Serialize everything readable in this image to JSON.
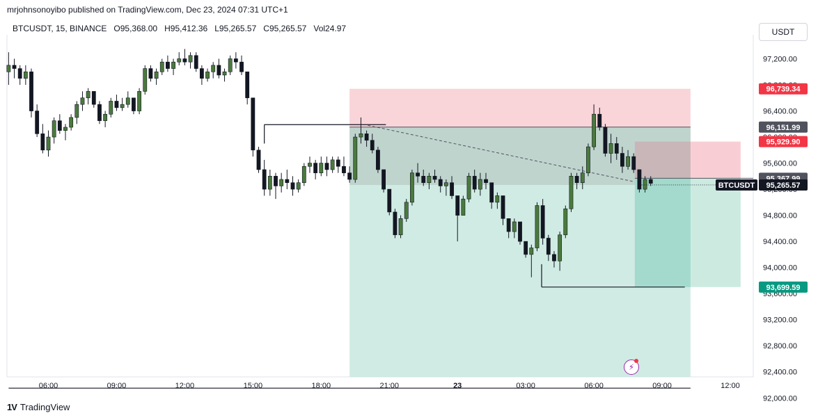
{
  "header": {
    "publish_text": "mrjohnsonoyibo published on TradingView.com, Dec 23, 2024 07:31 UTC+1",
    "symbol_line": "BTCUSDT, 15, BINANCE",
    "open": "O95,368.00",
    "high": "H95,412.36",
    "low": "L95,265.57",
    "close": "C95,265.57",
    "volume": "Vol24.97",
    "currency_button": "USDT"
  },
  "footer": {
    "brand": "TradingView"
  },
  "colors": {
    "up": "#4a7a3d",
    "down": "#131722",
    "stop_zone": "#f7c6cc",
    "target_zone": "#c4e6dc",
    "stop_tag": "#f23645",
    "target_tag": "#089981",
    "price_tag": "#131722",
    "level_tag": "#50535e"
  },
  "chart_data": {
    "type": "candlestick",
    "symbol": "BTCUSDT",
    "interval": "15",
    "ylim": [
      91950,
      97500
    ],
    "y_ticks": [
      "97,200.00",
      "96,800.00",
      "96,400.00",
      "96,000.00",
      "95,600.00",
      "95,200.00",
      "94,800.00",
      "94,400.00",
      "94,000.00",
      "93,600.00",
      "93,200.00",
      "92,800.00",
      "92,400.00",
      "92,000.00"
    ],
    "y_tick_values": [
      97200,
      96800,
      96400,
      96000,
      95600,
      95200,
      94800,
      94400,
      94000,
      93600,
      93200,
      92800,
      92400,
      92000
    ],
    "x_ticks": [
      "06:00",
      "09:00",
      "12:00",
      "15:00",
      "18:00",
      "21:00",
      "23",
      "03:00",
      "06:00",
      "09:00",
      "12:00"
    ],
    "x_tick_times": [
      6,
      9,
      12,
      15,
      18,
      21,
      24,
      27,
      30,
      33,
      36
    ],
    "time_start": 4.25,
    "time_step": 0.25,
    "candles": [
      [
        97000,
        97300,
        96800,
        97100
      ],
      [
        97100,
        97200,
        96900,
        97050
      ],
      [
        97050,
        97100,
        96800,
        96900
      ],
      [
        96900,
        97100,
        96800,
        97000
      ],
      [
        97000,
        97050,
        96300,
        96400
      ],
      [
        96400,
        96500,
        96000,
        96050
      ],
      [
        96050,
        96200,
        95750,
        95800
      ],
      [
        95800,
        96100,
        95700,
        96000
      ],
      [
        96000,
        96300,
        95900,
        96250
      ],
      [
        96250,
        96350,
        96050,
        96100
      ],
      [
        96100,
        96200,
        95950,
        96150
      ],
      [
        96150,
        96350,
        96100,
        96300
      ],
      [
        96300,
        96550,
        96200,
        96500
      ],
      [
        96500,
        96700,
        96400,
        96600
      ],
      [
        96600,
        96750,
        96500,
        96700
      ],
      [
        96700,
        96700,
        96450,
        96500
      ],
      [
        96500,
        96550,
        96200,
        96250
      ],
      [
        96250,
        96400,
        96150,
        96350
      ],
      [
        96350,
        96600,
        96300,
        96550
      ],
      [
        96550,
        96650,
        96400,
        96450
      ],
      [
        96450,
        96600,
        96400,
        96500
      ],
      [
        96500,
        96700,
        96450,
        96600
      ],
      [
        96600,
        96600,
        96350,
        96400
      ],
      [
        96400,
        96750,
        96350,
        96700
      ],
      [
        96700,
        97100,
        96650,
        97050
      ],
      [
        97050,
        97100,
        96850,
        96900
      ],
      [
        96900,
        97050,
        96800,
        97000
      ],
      [
        97000,
        97200,
        96950,
        97150
      ],
      [
        97150,
        97250,
        97000,
        97050
      ],
      [
        97050,
        97200,
        96950,
        97150
      ],
      [
        97150,
        97300,
        97100,
        97200
      ],
      [
        97200,
        97350,
        97100,
        97150
      ],
      [
        97150,
        97300,
        97050,
        97250
      ],
      [
        97250,
        97300,
        97000,
        97050
      ],
      [
        97050,
        97100,
        96800,
        96900
      ],
      [
        96900,
        97050,
        96850,
        97000
      ],
      [
        97000,
        97150,
        96900,
        97100
      ],
      [
        97100,
        97200,
        96900,
        96950
      ],
      [
        96950,
        97050,
        96850,
        97000
      ],
      [
        97000,
        97250,
        96950,
        97200
      ],
      [
        97200,
        97300,
        97050,
        97150
      ],
      [
        97150,
        97250,
        96950,
        97000
      ],
      [
        97000,
        97000,
        96500,
        96600
      ],
      [
        96600,
        96600,
        95700,
        95800
      ],
      [
        95800,
        95850,
        95450,
        95500
      ],
      [
        95500,
        95650,
        95100,
        95200
      ],
      [
        95200,
        95500,
        95100,
        95400
      ],
      [
        95400,
        95450,
        95050,
        95250
      ],
      [
        95250,
        95450,
        95150,
        95350
      ],
      [
        95350,
        95500,
        95200,
        95300
      ],
      [
        95300,
        95400,
        95100,
        95200
      ],
      [
        95200,
        95350,
        95150,
        95300
      ],
      [
        95300,
        95600,
        95250,
        95550
      ],
      [
        95550,
        95700,
        95450,
        95600
      ],
      [
        95600,
        95650,
        95350,
        95450
      ],
      [
        95450,
        95700,
        95400,
        95600
      ],
      [
        95600,
        95700,
        95400,
        95500
      ],
      [
        95500,
        95700,
        95450,
        95650
      ],
      [
        95650,
        95700,
        95450,
        95550
      ],
      [
        95550,
        95700,
        95400,
        95450
      ],
      [
        95450,
        95550,
        95300,
        95350
      ],
      [
        95350,
        96050,
        95300,
        96000
      ],
      [
        96000,
        96300,
        95900,
        96050
      ],
      [
        96050,
        96100,
        95850,
        95950
      ],
      [
        95950,
        96050,
        95750,
        95800
      ],
      [
        95800,
        95850,
        95450,
        95500
      ],
      [
        95500,
        95500,
        95150,
        95200
      ],
      [
        95200,
        95200,
        94800,
        94850
      ],
      [
        94850,
        94900,
        94450,
        94500
      ],
      [
        94500,
        94800,
        94450,
        94750
      ],
      [
        94750,
        95050,
        94700,
        95000
      ],
      [
        95000,
        95500,
        94950,
        95450
      ],
      [
        95450,
        95600,
        95300,
        95400
      ],
      [
        95400,
        95500,
        95250,
        95300
      ],
      [
        95300,
        95450,
        95200,
        95400
      ],
      [
        95400,
        95500,
        95300,
        95350
      ],
      [
        95350,
        95400,
        95150,
        95250
      ],
      [
        95250,
        95350,
        95100,
        95300
      ],
      [
        95300,
        95400,
        95050,
        95100
      ],
      [
        95100,
        95100,
        94400,
        94800
      ],
      [
        94800,
        95100,
        94800,
        95050
      ],
      [
        95050,
        95450,
        95000,
        95400
      ],
      [
        95400,
        95500,
        95150,
        95200
      ],
      [
        95200,
        95450,
        95100,
        95350
      ],
      [
        95350,
        95450,
        95200,
        95300
      ],
      [
        95300,
        95300,
        94900,
        95000
      ],
      [
        95000,
        95150,
        94900,
        95100
      ],
      [
        95100,
        95100,
        94650,
        94750
      ],
      [
        94750,
        94750,
        94450,
        94550
      ],
      [
        94550,
        94750,
        94450,
        94700
      ],
      [
        94700,
        94700,
        94350,
        94400
      ],
      [
        94400,
        94400,
        94150,
        94200
      ],
      [
        94200,
        94350,
        93850,
        94300
      ],
      [
        94300,
        95000,
        94250,
        94950
      ],
      [
        94950,
        95050,
        94350,
        94450
      ],
      [
        94450,
        94500,
        94100,
        94200
      ],
      [
        94200,
        94250,
        94000,
        94100
      ],
      [
        94100,
        94550,
        93950,
        94500
      ],
      [
        94500,
        94950,
        94450,
        94900
      ],
      [
        94900,
        95450,
        94850,
        95400
      ],
      [
        95400,
        95450,
        95200,
        95300
      ],
      [
        95300,
        95550,
        95200,
        95450
      ],
      [
        95450,
        95900,
        95400,
        95850
      ],
      [
        95850,
        96500,
        95800,
        96350
      ],
      [
        96350,
        96450,
        96100,
        96150
      ],
      [
        96150,
        96200,
        95700,
        95750
      ],
      [
        95750,
        96050,
        95600,
        95900
      ],
      [
        95900,
        96000,
        95650,
        95750
      ],
      [
        95750,
        95850,
        95450,
        95550
      ],
      [
        95550,
        95800,
        95500,
        95700
      ],
      [
        95700,
        95750,
        95450,
        95500
      ],
      [
        95500,
        95500,
        95150,
        95200
      ],
      [
        95200,
        95400,
        95150,
        95350
      ],
      [
        95350,
        95400,
        95250,
        95290
      ]
    ],
    "annotations": {
      "position_zone": {
        "entry_time": 19.25,
        "end_time": 34.25,
        "entry": 95265,
        "stop": 96739.34,
        "target": 91950
      },
      "position_zone_2": {
        "entry_time": 31.8,
        "end_time": 34.25,
        "entry": 95367.99,
        "stop": 95929.9,
        "target": 93699.59
      },
      "level_lines": [
        {
          "price": 96151.99,
          "from_time": 19.25,
          "to_time": 34.25
        },
        {
          "price": 95367.99,
          "from_time": 31.8,
          "to_time": 37.5
        }
      ],
      "horizontal_segments": [
        {
          "price": 96190,
          "from_time": 15.5,
          "to_time": 20.85
        },
        {
          "price": 93700,
          "from_time": 27.7,
          "to_time": 34.0
        },
        {
          "price": 92150,
          "from_time": 4.25,
          "to_time": 34.25
        }
      ],
      "vertical_segments": [
        {
          "time": 15.5,
          "from_price": 95900,
          "to_price": 96190
        },
        {
          "time": 27.7,
          "from_price": 93700,
          "to_price": 94050
        }
      ],
      "dashed_trendline": {
        "from": [
          20.05,
          96180
        ],
        "to": [
          31.7,
          95320
        ]
      }
    },
    "price_tags": [
      {
        "label": "96,739.34",
        "value": 96739.34,
        "role": "stop"
      },
      {
        "label": "96,151.99",
        "value": 96151.99,
        "role": "level"
      },
      {
        "label": "95,929.90",
        "value": 95929.9,
        "role": "stop"
      },
      {
        "label": "95,367.99",
        "value": 95367.99,
        "role": "level"
      },
      {
        "label": "95,265.57",
        "value": 95265.57,
        "role": "price",
        "symbol": "BTCUSDT"
      },
      {
        "label": "93,699.59",
        "value": 93699.59,
        "role": "target"
      }
    ]
  }
}
